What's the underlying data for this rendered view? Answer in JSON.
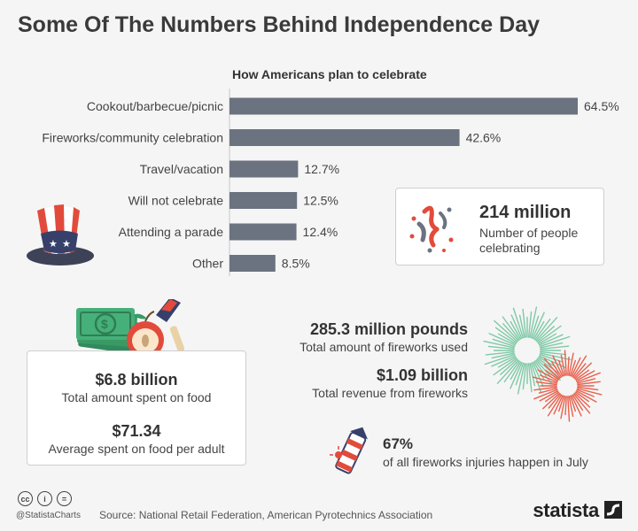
{
  "title": "Some Of The Numbers Behind Independence Day",
  "chart_data": {
    "type": "bar",
    "orientation": "horizontal",
    "title": "How Americans plan to celebrate",
    "categories": [
      "Cookout/barbecue/picnic",
      "Fireworks/community celebration",
      "Travel/vacation",
      "Will not celebrate",
      "Attending a parade",
      "Other"
    ],
    "values": [
      64.5,
      42.6,
      12.7,
      12.5,
      12.4,
      8.5
    ],
    "value_labels": [
      "64.5%",
      "42.6%",
      "12.7%",
      "12.5%",
      "12.4%",
      "8.5%"
    ],
    "xlim": [
      0,
      64.5
    ],
    "bar_color": "#6b7280",
    "grid": false
  },
  "people": {
    "value": "214 million",
    "label_line1": "Number of people",
    "label_line2": "celebrating"
  },
  "food": {
    "total_value": "$6.8 billion",
    "total_label": "Total amount spent on food",
    "avg_value": "$71.34",
    "avg_label": "Average spent on food per adult"
  },
  "fireworks": {
    "pounds_value": "285.3 million pounds",
    "pounds_label": "Total amount of fireworks used",
    "revenue_value": "$1.09 billion",
    "revenue_label": "Total revenue from fireworks",
    "injuries_value": "67%",
    "injuries_label": "of all fireworks injuries happen in July"
  },
  "footer": {
    "handle": "@StatistaCharts",
    "source": "Source: National Retail Federation, American Pyrotechnics Association",
    "brand": "statista",
    "cc_icons": [
      "cc",
      "i",
      "="
    ]
  },
  "colors": {
    "bar": "#6b7280",
    "red": "#e24b3b",
    "navy": "#37406b",
    "green": "#3a9a66",
    "firework_green": "#7fc9a6",
    "firework_red": "#e8604c"
  }
}
